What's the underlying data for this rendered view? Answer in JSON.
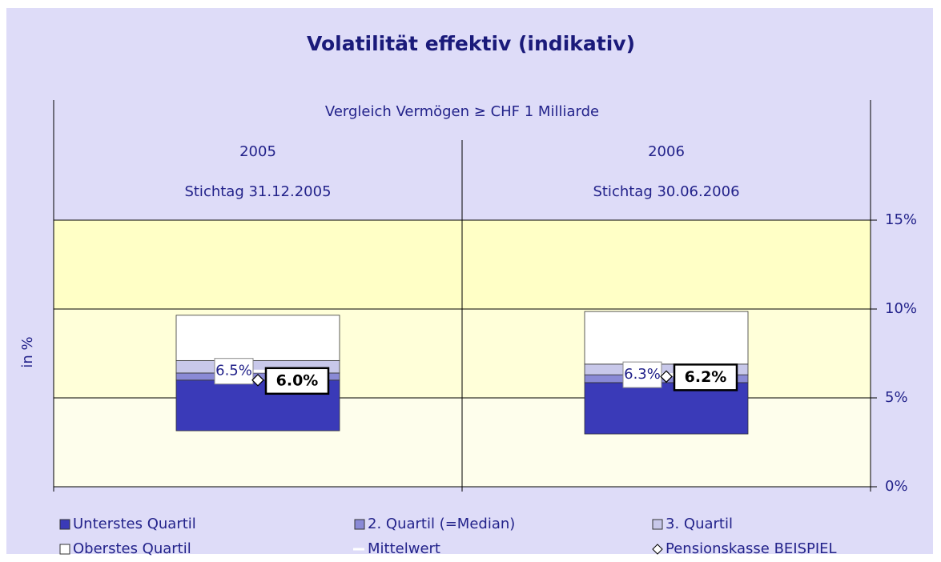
{
  "chart_data": {
    "type": "floating-stacked-bar",
    "title": "Volatilität effektiv (indikativ)",
    "subtitle": "Vergleich Vermögen ≥ CHF 1 Milliarde",
    "y_label": "in %",
    "categories": [
      "2005",
      "2006"
    ],
    "category_dates": [
      "Stichtag  31.12.2005",
      "Stichtag  30.06.2006"
    ],
    "base_values": [
      3.15,
      2.97
    ],
    "series": [
      {
        "name": "Unterstes Quartil",
        "kind": "stack",
        "color": "#3a3ab8",
        "values": [
          2.85,
          2.89
        ]
      },
      {
        "name": "2. Quartil (=Median)",
        "kind": "stack",
        "color": "#8a8ad6",
        "values": [
          0.4,
          0.44
        ]
      },
      {
        "name": "3. Quartil",
        "kind": "stack",
        "color": "#c8c8ea",
        "values": [
          0.7,
          0.6
        ]
      },
      {
        "name": "Oberstes Quartil",
        "kind": "stack",
        "color": "#ffffff",
        "values": [
          2.55,
          2.96
        ]
      },
      {
        "name": "Mittelwert",
        "kind": "line",
        "color": "#ffffff",
        "values": [
          6.5,
          6.3
        ],
        "value_labels": [
          "6.5%",
          "6.3%"
        ]
      },
      {
        "name": "Pensionskasse BEISPIEL",
        "kind": "diamond",
        "color": "#ffffff",
        "values": [
          6.0,
          6.2
        ],
        "value_labels": [
          "6.0%",
          "6.2%"
        ]
      }
    ],
    "ylim": [
      0,
      15
    ],
    "yticks": [
      {
        "value": 0,
        "label": "0%"
      },
      {
        "value": 5,
        "label": "5%"
      },
      {
        "value": 10,
        "label": "10%"
      },
      {
        "value": 15,
        "label": "15%"
      }
    ],
    "band_colors": [
      "#fefeec",
      "#ffffd9",
      "#ffffc6"
    ],
    "grid": true
  }
}
